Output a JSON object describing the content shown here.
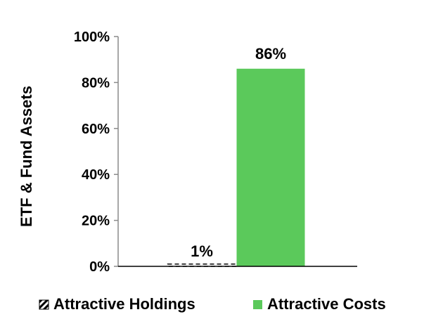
{
  "chart_data": {
    "type": "bar",
    "title": "",
    "xlabel": "",
    "ylabel": "ETF & Fund Assets",
    "ylim": [
      0,
      100
    ],
    "yticks": [
      0,
      20,
      40,
      60,
      80,
      100
    ],
    "ytick_labels": [
      "0%",
      "20%",
      "40%",
      "60%",
      "80%",
      "100%"
    ],
    "grid": false,
    "legend_position": "bottom",
    "series": [
      {
        "name": "Attractive Holdings",
        "values": [
          1
        ],
        "value_label": "1%",
        "color": "#000000",
        "fill": "hatched"
      },
      {
        "name": "Attractive Costs",
        "values": [
          86
        ],
        "value_label": "86%",
        "color": "#5bc95b",
        "fill": "solid"
      }
    ]
  }
}
